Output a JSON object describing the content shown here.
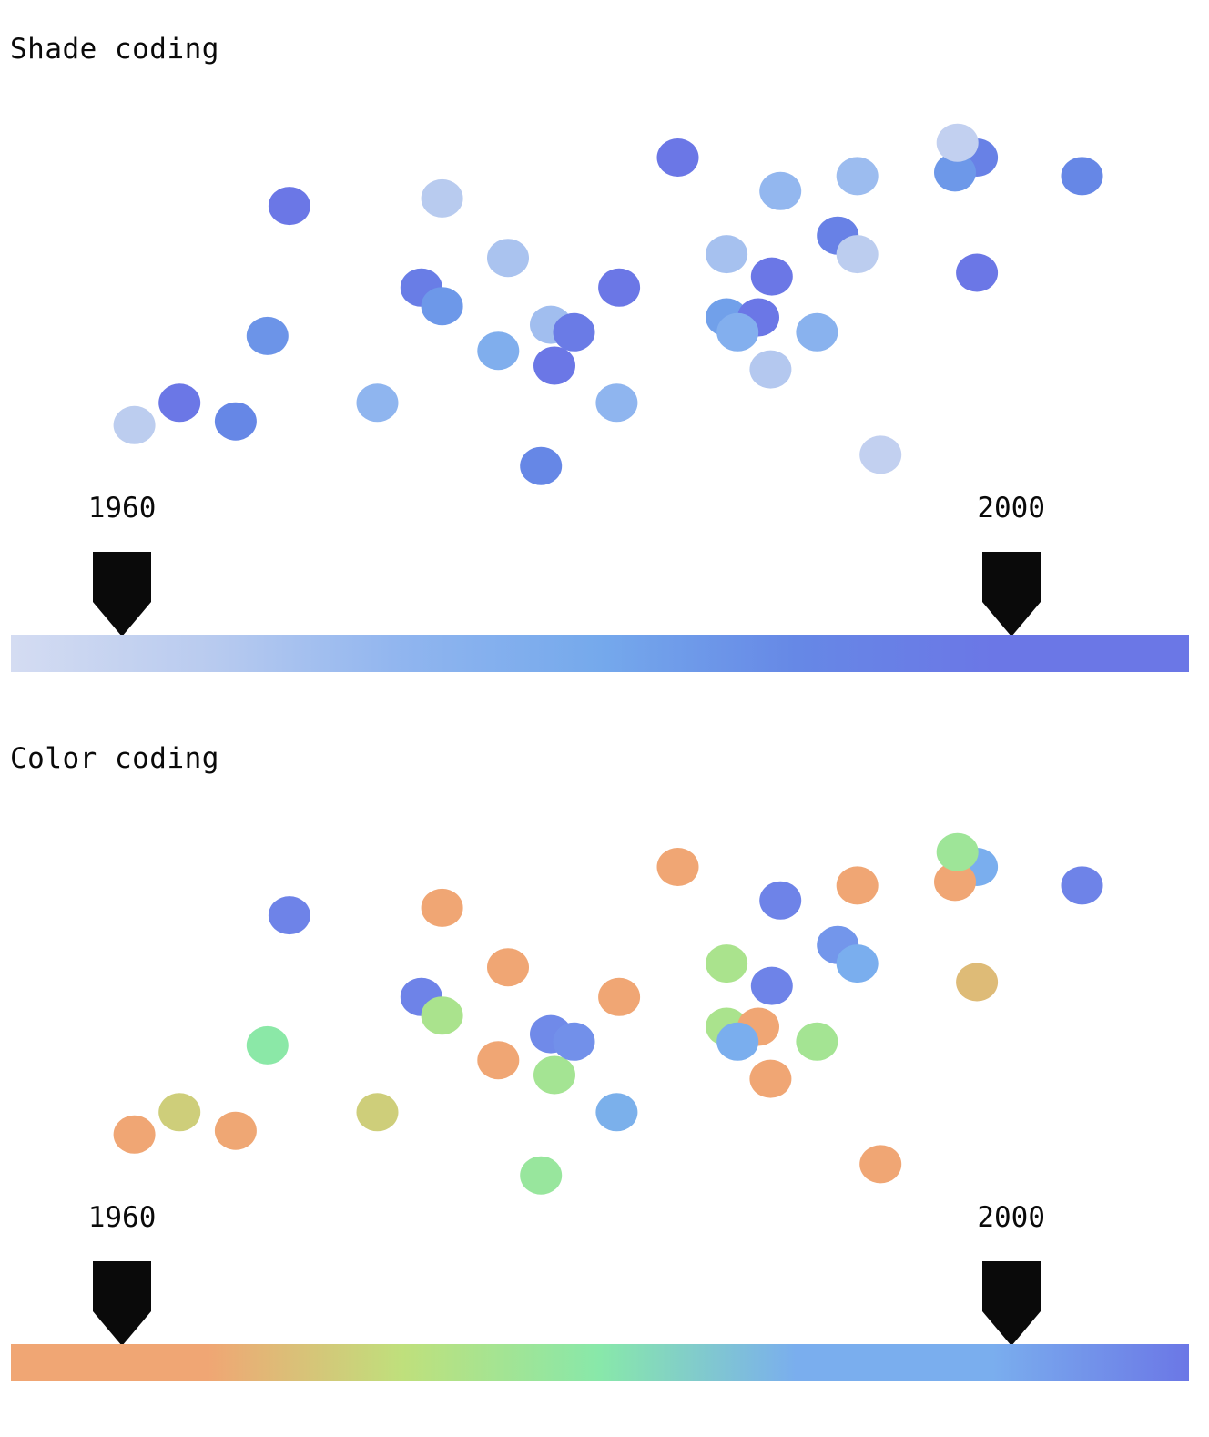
{
  "chart_data": [
    {
      "type": "scatter",
      "title": "Shade coding",
      "encoding": "shade",
      "x_range": [
        1,
        100
      ],
      "y_range": [
        0,
        100
      ],
      "scale": {
        "domain": [
          1955,
          2008
        ],
        "ticks": [
          1960,
          2000
        ],
        "tick_labels": [
          "1960",
          "2000"
        ],
        "colors": [
          "#d4dcf2",
          "#b9cbef",
          "#90b5ef",
          "#75a9ec",
          "#6688e6",
          "#6b77e6",
          "#6b77e6"
        ]
      },
      "points": [
        {
          "x": 12.0,
          "y": 15,
          "year": 1963
        },
        {
          "x": 15.7,
          "y": 21,
          "year": 1999
        },
        {
          "x": 20.3,
          "y": 16,
          "year": 1991
        },
        {
          "x": 22.9,
          "y": 39,
          "year": 1987
        },
        {
          "x": 24.7,
          "y": 74,
          "year": 2004
        },
        {
          "x": 31.9,
          "y": 21,
          "year": 1973
        },
        {
          "x": 35.5,
          "y": 52,
          "year": 1996
        },
        {
          "x": 37.2,
          "y": 76,
          "year": 1964
        },
        {
          "x": 37.2,
          "y": 47,
          "year": 1986
        },
        {
          "x": 41.8,
          "y": 35,
          "year": 1978
        },
        {
          "x": 42.6,
          "y": 60,
          "year": 1967
        },
        {
          "x": 45.3,
          "y": 4,
          "year": 1991
        },
        {
          "x": 46.1,
          "y": 42,
          "year": 1969
        },
        {
          "x": 46.4,
          "y": 31,
          "year": 2005
        },
        {
          "x": 48.0,
          "y": 40,
          "year": 1997
        },
        {
          "x": 51.5,
          "y": 21,
          "year": 1973
        },
        {
          "x": 51.7,
          "y": 52,
          "year": 2002
        },
        {
          "x": 56.5,
          "y": 87,
          "year": 2004
        },
        {
          "x": 60.5,
          "y": 61,
          "year": 1968
        },
        {
          "x": 60.5,
          "y": 44,
          "year": 1984
        },
        {
          "x": 63.1,
          "y": 44,
          "year": 2001
        },
        {
          "x": 61.4,
          "y": 40,
          "year": 1977
        },
        {
          "x": 64.2,
          "y": 55,
          "year": 2004
        },
        {
          "x": 64.1,
          "y": 30,
          "year": 1965
        },
        {
          "x": 64.9,
          "y": 78,
          "year": 1972
        },
        {
          "x": 67.9,
          "y": 40,
          "year": 1975
        },
        {
          "x": 69.6,
          "y": 66,
          "year": 1994
        },
        {
          "x": 71.2,
          "y": 82,
          "year": 1970
        },
        {
          "x": 71.2,
          "y": 61,
          "year": 1963
        },
        {
          "x": 73.1,
          "y": 7,
          "year": 1961
        },
        {
          "x": 81.0,
          "y": 87,
          "year": 1994
        },
        {
          "x": 79.2,
          "y": 83,
          "year": 1986
        },
        {
          "x": 79.4,
          "y": 91,
          "year": 1961
        },
        {
          "x": 81.0,
          "y": 56,
          "year": 2003
        },
        {
          "x": 89.6,
          "y": 82,
          "year": 1991
        }
      ]
    },
    {
      "type": "scatter",
      "title": "Color coding",
      "encoding": "color",
      "x_range": [
        1,
        100
      ],
      "y_range": [
        0,
        100
      ],
      "scale": {
        "domain": [
          1955,
          2008
        ],
        "ticks": [
          1960,
          2000
        ],
        "tick_labels": [
          "1960",
          "2000"
        ],
        "colors": [
          "#f0a674",
          "#f0a674",
          "#bfe07c",
          "#88e8aa",
          "#7aaeee",
          "#7aaeee",
          "#6b77e6"
        ]
      },
      "points": [
        {
          "x": 12.0,
          "y": 15,
          "year": 1960
        },
        {
          "x": 15.7,
          "y": 21,
          "year": 1970
        },
        {
          "x": 20.3,
          "y": 16,
          "year": 1964
        },
        {
          "x": 22.9,
          "y": 39,
          "year": 1981
        },
        {
          "x": 24.7,
          "y": 74,
          "year": 2006
        },
        {
          "x": 31.9,
          "y": 21,
          "year": 1970
        },
        {
          "x": 35.5,
          "y": 52,
          "year": 2006
        },
        {
          "x": 37.2,
          "y": 76,
          "year": 1961
        },
        {
          "x": 37.2,
          "y": 47,
          "year": 1976
        },
        {
          "x": 41.8,
          "y": 35,
          "year": 1961
        },
        {
          "x": 42.6,
          "y": 60,
          "year": 1960
        },
        {
          "x": 45.3,
          "y": 4,
          "year": 1979
        },
        {
          "x": 46.1,
          "y": 42,
          "year": 2005
        },
        {
          "x": 46.4,
          "y": 31,
          "year": 1977
        },
        {
          "x": 48.0,
          "y": 40,
          "year": 2004
        },
        {
          "x": 51.5,
          "y": 21,
          "year": 1990
        },
        {
          "x": 51.7,
          "y": 52,
          "year": 1960
        },
        {
          "x": 56.5,
          "y": 87,
          "year": 1963
        },
        {
          "x": 60.5,
          "y": 61,
          "year": 1976
        },
        {
          "x": 60.5,
          "y": 44,
          "year": 1976
        },
        {
          "x": 63.1,
          "y": 44,
          "year": 1960
        },
        {
          "x": 61.4,
          "y": 40,
          "year": 1991
        },
        {
          "x": 64.2,
          "y": 55,
          "year": 2006
        },
        {
          "x": 64.1,
          "y": 30,
          "year": 1960
        },
        {
          "x": 64.9,
          "y": 78,
          "year": 2006
        },
        {
          "x": 67.9,
          "y": 40,
          "year": 1977
        },
        {
          "x": 69.6,
          "y": 66,
          "year": 2003
        },
        {
          "x": 71.2,
          "y": 82,
          "year": 1963
        },
        {
          "x": 71.2,
          "y": 61,
          "year": 1991
        },
        {
          "x": 73.1,
          "y": 7,
          "year": 1960
        },
        {
          "x": 81.0,
          "y": 87,
          "year": 1992
        },
        {
          "x": 79.2,
          "y": 83,
          "year": 1961
        },
        {
          "x": 79.4,
          "y": 91,
          "year": 1978
        },
        {
          "x": 81.0,
          "y": 56,
          "year": 1967
        },
        {
          "x": 89.6,
          "y": 82,
          "year": 2006
        }
      ]
    }
  ]
}
